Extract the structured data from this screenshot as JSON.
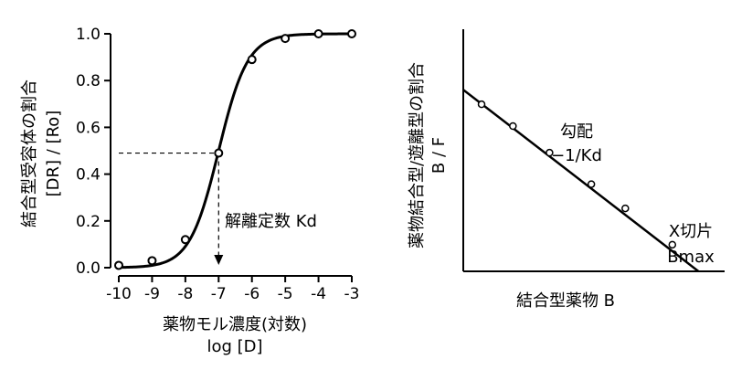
{
  "chart_data": [
    {
      "type": "line",
      "title": "",
      "xlabel": "薬物モル濃度(対数)",
      "xlabel_sub": "log [D]",
      "ylabel": "結合型受容体の割合",
      "ylabel_sub": "[DR] / [Ro]",
      "xlim": [
        -10,
        -3
      ],
      "ylim": [
        0.0,
        1.0
      ],
      "xticks": [
        "-10",
        "-9",
        "-8",
        "-7",
        "-6",
        "-5",
        "-4",
        "-3"
      ],
      "xtick_values": [
        -10,
        -9,
        -8,
        -7,
        -6,
        -5,
        -4,
        -3
      ],
      "yticks": [
        "0.0",
        "0.2",
        "0.4",
        "0.6",
        "0.8",
        "1.0"
      ],
      "ytick_values": [
        0.0,
        0.2,
        0.4,
        0.6,
        0.8,
        1.0
      ],
      "grid": false,
      "points": [
        {
          "x": -10,
          "y": 0.01
        },
        {
          "x": -9,
          "y": 0.03
        },
        {
          "x": -8,
          "y": 0.12
        },
        {
          "x": -7,
          "y": 0.49
        },
        {
          "x": -6,
          "y": 0.89
        },
        {
          "x": -5,
          "y": 0.98
        },
        {
          "x": -4,
          "y": 1.0
        },
        {
          "x": -3,
          "y": 1.0
        }
      ],
      "curve": {
        "type": "sigmoid",
        "ec50_log": -7,
        "hill": 1.0
      },
      "kd_x": -7,
      "kd_y": 0.49,
      "annotation": "解離定数 Kd"
    },
    {
      "type": "scatter",
      "title": "",
      "xlabel": "結合型薬物 B",
      "ylabel": "薬物結合型/遊離型の割合",
      "ylabel_sub": "B / F",
      "xlim": [
        0,
        1
      ],
      "ylim": [
        0,
        1
      ],
      "grid": false,
      "points": [
        {
          "x": 0.07,
          "y": 0.69
        },
        {
          "x": 0.19,
          "y": 0.6
        },
        {
          "x": 0.33,
          "y": 0.49
        },
        {
          "x": 0.49,
          "y": 0.36
        },
        {
          "x": 0.62,
          "y": 0.26
        },
        {
          "x": 0.8,
          "y": 0.11
        }
      ],
      "fit_line": {
        "y_intercept": 0.75,
        "x_intercept": 0.9
      },
      "slope_label": "勾配",
      "slope_value": "−1/Kd",
      "x_intercept_label": "X切片",
      "x_intercept_value": "Bmax"
    }
  ]
}
